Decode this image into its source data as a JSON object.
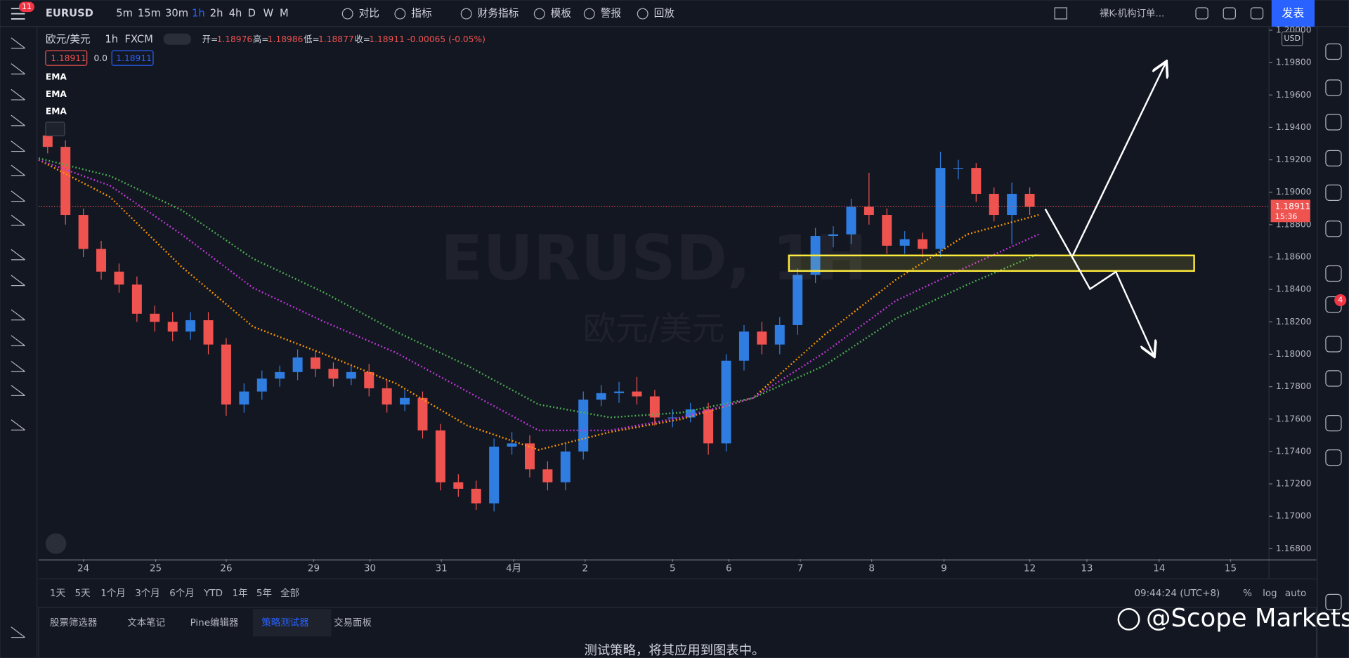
{
  "toolbar": {
    "badge": "11",
    "symbol": "EURUSD",
    "intervals": [
      "5m",
      "15m",
      "30m",
      "1h",
      "2h",
      "4h",
      "D",
      "W",
      "M"
    ],
    "buttons": [
      "对比",
      "指标",
      "财务指标",
      "模板",
      "警报",
      "回放"
    ],
    "layout": "裸K-机构订单...",
    "publish": "发表"
  },
  "legend": {
    "name": "欧元/美元",
    "interval": "1h",
    "source": "FXCM",
    "ohlc": [
      [
        "开=",
        "1.18976"
      ],
      [
        "高=",
        "1.18986"
      ],
      [
        "低=",
        "1.18877"
      ],
      [
        "收=",
        "1.18911"
      ]
    ],
    "change": "-0.00065 (-0.05%)",
    "bid": "1.18911",
    "spread": "0.0",
    "ask": "1.18911"
  },
  "watermark": {
    "symbol": "EURUSD, 1H",
    "name": "欧元/美元"
  },
  "chart_data": {
    "type": "candlestick",
    "up_color": "#2f7de1",
    "down_color": "#ef5350",
    "xlim": [
      0,
      68.9
    ],
    "ylim": [
      1.16736,
      1.20027
    ],
    "xticks": [
      {
        "value": 2.5,
        "label": "24"
      },
      {
        "value": 6.55,
        "label": "25"
      },
      {
        "value": 10.5,
        "label": "26"
      },
      {
        "value": 15.4,
        "label": "29"
      },
      {
        "value": 18.55,
        "label": "30"
      },
      {
        "value": 22.55,
        "label": "31"
      },
      {
        "value": 26.6,
        "label": "4月"
      },
      {
        "value": 30.6,
        "label": "2"
      },
      {
        "value": 35.5,
        "label": "5"
      },
      {
        "value": 38.65,
        "label": "6"
      },
      {
        "value": 42.65,
        "label": "7"
      },
      {
        "value": 46.65,
        "label": "8"
      },
      {
        "value": 50.7,
        "label": "9"
      },
      {
        "value": 55.5,
        "label": "12"
      },
      {
        "value": 58.7,
        "label": "13"
      },
      {
        "value": 62.75,
        "label": "14"
      },
      {
        "value": 66.75,
        "label": "15"
      }
    ],
    "yticks": [
      {
        "value": 1.168,
        "label": "1.16800"
      },
      {
        "value": 1.17,
        "label": "1.17000"
      },
      {
        "value": 1.172,
        "label": "1.17200"
      },
      {
        "value": 1.174,
        "label": "1.17400"
      },
      {
        "value": 1.176,
        "label": "1.17600"
      },
      {
        "value": 1.178,
        "label": "1.17800"
      },
      {
        "value": 1.18,
        "label": "1.18000"
      },
      {
        "value": 1.182,
        "label": "1.18200"
      },
      {
        "value": 1.184,
        "label": "1.18400"
      },
      {
        "value": 1.186,
        "label": "1.18600"
      },
      {
        "value": 1.188,
        "label": "1.18800"
      },
      {
        "value": 1.19,
        "label": "1.19000"
      },
      {
        "value": 1.192,
        "label": "1.19200"
      },
      {
        "value": 1.194,
        "label": "1.19400"
      },
      {
        "value": 1.196,
        "label": "1.19600"
      },
      {
        "value": 1.198,
        "label": "1.19800"
      },
      {
        "value": 1.2,
        "label": "1.20000"
      }
    ],
    "open": [
      1.1935,
      1.1928,
      1.1886,
      1.1865,
      1.1851,
      1.1843,
      1.1825,
      1.182,
      1.1814,
      1.1821,
      1.1806,
      1.1769,
      1.1777,
      1.1785,
      1.1789,
      1.1798,
      1.1791,
      1.1785,
      1.1789,
      1.1779,
      1.1769,
      1.1773,
      1.1753,
      1.1721,
      1.1717,
      1.1708,
      1.1743,
      1.1745,
      1.1729,
      1.1721,
      1.174,
      1.1772,
      1.1776,
      1.1777,
      1.1774,
      1.1761,
      1.1761,
      1.1766,
      1.1745,
      1.1796,
      1.1814,
      1.1806,
      1.1818,
      1.1849,
      1.1873,
      1.1874,
      1.1891,
      1.1886,
      1.1867,
      1.1871,
      1.1865,
      1.1915,
      1.1915,
      1.1899,
      1.1886,
      1.1899
    ],
    "high": [
      1.194,
      1.1932,
      1.189,
      1.187,
      1.1856,
      1.1848,
      1.183,
      1.1826,
      1.1826,
      1.1826,
      1.181,
      1.1782,
      1.179,
      1.1793,
      1.1803,
      1.1802,
      1.1795,
      1.1793,
      1.1794,
      1.1784,
      1.1778,
      1.1777,
      1.1757,
      1.1726,
      1.1722,
      1.1748,
      1.1752,
      1.175,
      1.1734,
      1.1745,
      1.1777,
      1.1781,
      1.1783,
      1.1786,
      1.1778,
      1.1766,
      1.177,
      1.177,
      1.18,
      1.1818,
      1.182,
      1.1823,
      1.1853,
      1.1878,
      1.1879,
      1.1896,
      1.1912,
      1.189,
      1.1876,
      1.1875,
      1.1925,
      1.192,
      1.1918,
      1.1903,
      1.1906,
      1.1903
    ],
    "low": [
      1.1924,
      1.188,
      1.186,
      1.1846,
      1.1838,
      1.182,
      1.1814,
      1.1808,
      1.1809,
      1.18,
      1.1762,
      1.1764,
      1.1772,
      1.178,
      1.1784,
      1.1786,
      1.178,
      1.1781,
      1.1774,
      1.1764,
      1.1765,
      1.1748,
      1.1716,
      1.1712,
      1.1704,
      1.1703,
      1.1738,
      1.1724,
      1.1716,
      1.1716,
      1.1735,
      1.1768,
      1.177,
      1.1769,
      1.1756,
      1.1755,
      1.1758,
      1.1738,
      1.174,
      1.179,
      1.18,
      1.18,
      1.1812,
      1.1844,
      1.1866,
      1.1868,
      1.188,
      1.1862,
      1.1862,
      1.186,
      1.186,
      1.1908,
      1.1894,
      1.1882,
      1.1868,
      1.1886
    ],
    "close": [
      1.1928,
      1.1886,
      1.1865,
      1.1851,
      1.1843,
      1.1825,
      1.182,
      1.1814,
      1.1821,
      1.1806,
      1.1769,
      1.1777,
      1.1785,
      1.1789,
      1.1798,
      1.1791,
      1.1785,
      1.1789,
      1.1779,
      1.1769,
      1.1773,
      1.1753,
      1.1721,
      1.1717,
      1.1708,
      1.1743,
      1.1745,
      1.1729,
      1.1721,
      1.174,
      1.1772,
      1.1776,
      1.1777,
      1.1774,
      1.1761,
      1.1761,
      1.1766,
      1.1745,
      1.1796,
      1.1814,
      1.1806,
      1.1818,
      1.1849,
      1.1873,
      1.1874,
      1.1891,
      1.1886,
      1.1867,
      1.1871,
      1.1865,
      1.1915,
      1.1915,
      1.1899,
      1.1886,
      1.1899,
      1.1891
    ],
    "ema": [
      {
        "name": "EMA",
        "color": "#ff9800",
        "x": [
          0,
          4,
          8,
          12,
          16,
          20,
          24,
          28,
          32,
          36,
          40,
          44,
          48,
          52,
          56
        ],
        "values": [
          1.192,
          1.1897,
          1.1854,
          1.1817,
          1.18,
          1.1782,
          1.1756,
          1.1741,
          1.1752,
          1.176,
          1.1773,
          1.1812,
          1.1846,
          1.1874,
          1.1886
        ]
      },
      {
        "name": "EMA",
        "color": "#c238d8",
        "x": [
          0,
          4,
          8,
          12,
          16,
          20,
          24,
          28,
          32,
          36,
          40,
          44,
          48,
          52,
          56
        ],
        "values": [
          1.192,
          1.1904,
          1.1874,
          1.1841,
          1.182,
          1.1801,
          1.1777,
          1.1753,
          1.1753,
          1.1761,
          1.1773,
          1.1801,
          1.1833,
          1.1854,
          1.1874
        ]
      },
      {
        "name": "EMA",
        "color": "#4caf50",
        "x": [
          0,
          4,
          8,
          12,
          16,
          20,
          24,
          28,
          32,
          36,
          40,
          44,
          48,
          52,
          56
        ],
        "values": [
          1.1921,
          1.191,
          1.1889,
          1.1859,
          1.1838,
          1.1814,
          1.1793,
          1.1769,
          1.1761,
          1.1764,
          1.1773,
          1.1793,
          1.1822,
          1.1843,
          1.1862
        ]
      }
    ],
    "last_price": 1.18911,
    "countdown": "15:36",
    "currency": "USD"
  },
  "bottom_bar": {
    "ranges": [
      "1天",
      "5天",
      "1个月",
      "3个月",
      "6个月",
      "YTD",
      "1年",
      "5年",
      "全部"
    ],
    "time": "09:44:24 (UTC+8)",
    "options": [
      "%",
      "log",
      "auto"
    ]
  },
  "tabs": [
    "股票筛选器",
    "文本笔记",
    "Pine编辑器",
    "策略测试器",
    "交易面板"
  ],
  "panel_message": "测试策略，将其应用到图表中。",
  "brand": "@Scope Markets",
  "notifications": "4"
}
